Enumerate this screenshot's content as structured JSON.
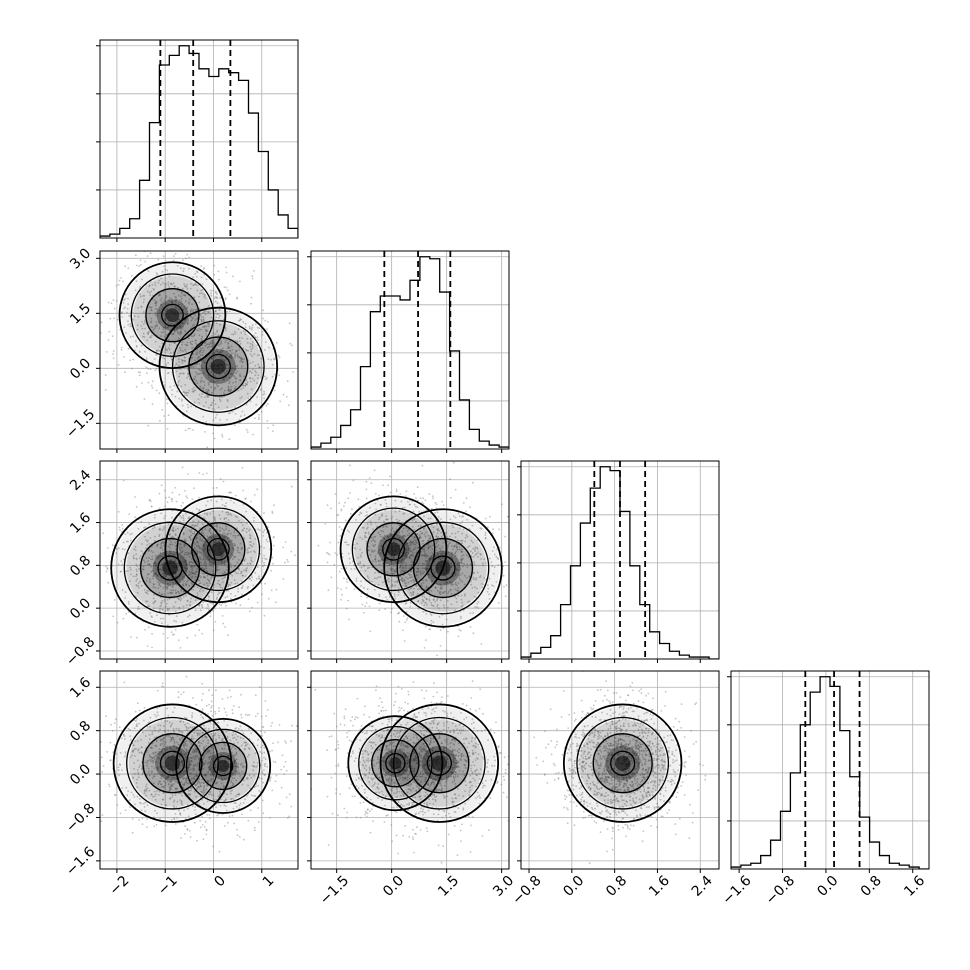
{
  "chart_data": {
    "type": "corner",
    "parameters": 4,
    "grid": true,
    "colors": {
      "line": "#000000",
      "grid": "#b0b0b0",
      "scatter": "#7f7f7f"
    },
    "ranges": [
      [
        -2.35,
        1.75
      ],
      [
        -2.2,
        3.2
      ],
      [
        -0.95,
        2.75
      ],
      [
        -1.75,
        1.9
      ]
    ],
    "ticks": [
      [
        -2,
        -1,
        0,
        1
      ],
      [
        -1.5,
        0.0,
        1.5,
        3.0
      ],
      [
        -0.8,
        0.0,
        0.8,
        1.6,
        2.4
      ],
      [
        -1.6,
        -0.8,
        0.0,
        0.8,
        1.6
      ]
    ],
    "tick_labels": [
      [
        "−2",
        "−1",
        "0",
        "1"
      ],
      [
        "−1.5",
        "0.0",
        "1.5",
        "3.0"
      ],
      [
        "−0.8",
        "0.0",
        "0.8",
        "1.6",
        "2.4"
      ],
      [
        "−1.6",
        "−0.8",
        "0.0",
        "0.8",
        "1.6"
      ]
    ],
    "quantiles": [
      [
        -1.1,
        -0.42,
        0.35
      ],
      [
        -0.2,
        0.72,
        1.6
      ],
      [
        0.42,
        0.9,
        1.37
      ],
      [
        -0.38,
        0.15,
        0.62
      ]
    ],
    "histograms": [
      {
        "x_left": -2.35,
        "bin_width": 0.205,
        "counts": [
          1,
          2,
          5,
          10,
          30,
          60,
          90,
          95,
          100,
          96,
          88,
          84,
          88,
          86,
          82,
          65,
          45,
          25,
          12,
          5,
          1
        ]
      },
      {
        "x_left": -2.2,
        "bin_width": 0.27,
        "counts": [
          1,
          3,
          6,
          12,
          20,
          42,
          70,
          78,
          78,
          76,
          86,
          98,
          97,
          80,
          50,
          25,
          10,
          4,
          2,
          1
        ]
      },
      {
        "x_left": -0.95,
        "bin_width": 0.185,
        "counts": [
          1,
          3,
          6,
          12,
          28,
          48,
          70,
          88,
          99,
          97,
          76,
          48,
          28,
          14,
          8,
          4,
          2,
          1,
          1,
          0
        ]
      },
      {
        "x_left": -1.75,
        "bin_width": 0.1825,
        "counts": [
          1,
          2,
          3,
          7,
          15,
          30,
          50,
          75,
          92,
          100,
          95,
          72,
          48,
          27,
          14,
          7,
          3,
          2,
          1,
          0
        ]
      }
    ],
    "joint": [
      {
        "row": 1,
        "col": 0,
        "modes": [
          {
            "x": -0.85,
            "y": 1.45,
            "w": 0.9
          },
          {
            "x": 0.1,
            "y": 0.05,
            "w": 1.0
          }
        ]
      },
      {
        "row": 2,
        "col": 0,
        "modes": [
          {
            "x": -0.9,
            "y": 0.75,
            "w": 1.0
          },
          {
            "x": 0.1,
            "y": 1.1,
            "w": 0.9
          }
        ]
      },
      {
        "row": 2,
        "col": 1,
        "modes": [
          {
            "x": 0.05,
            "y": 1.1,
            "w": 0.9
          },
          {
            "x": 1.4,
            "y": 0.75,
            "w": 1.0
          }
        ]
      },
      {
        "row": 3,
        "col": 0,
        "modes": [
          {
            "x": -0.85,
            "y": 0.2,
            "w": 1.0
          },
          {
            "x": 0.2,
            "y": 0.15,
            "w": 0.8
          }
        ]
      },
      {
        "row": 3,
        "col": 1,
        "modes": [
          {
            "x": 0.1,
            "y": 0.2,
            "w": 0.8
          },
          {
            "x": 1.3,
            "y": 0.2,
            "w": 1.0
          }
        ]
      },
      {
        "row": 3,
        "col": 2,
        "modes": [
          {
            "x": 0.95,
            "y": 0.2,
            "w": 1.0
          }
        ]
      }
    ]
  }
}
